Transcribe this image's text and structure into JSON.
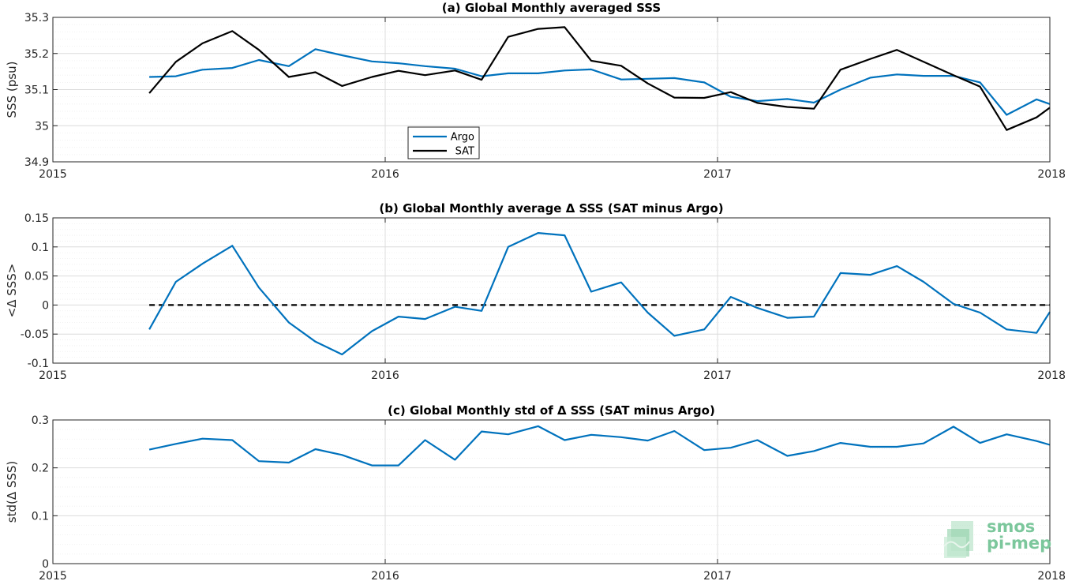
{
  "chart_data": [
    {
      "type": "line",
      "title": "(a) Global Monthly averaged SSS",
      "ylabel": "SSS (psu)",
      "xlabel": "",
      "xlim": [
        2015,
        2018
      ],
      "ylim": [
        34.9,
        35.3
      ],
      "x_ticks": [
        "2015",
        "2016",
        "2017",
        "2018"
      ],
      "y_ticks": [
        "34.9",
        "35",
        "35.1",
        "35.2",
        "35.3"
      ],
      "grid": true,
      "legend": "lower-left",
      "x": [
        2015.29,
        2015.37,
        2015.45,
        2015.54,
        2015.62,
        2015.71,
        2015.79,
        2015.87,
        2015.96,
        2016.04,
        2016.12,
        2016.21,
        2016.29,
        2016.37,
        2016.46,
        2016.54,
        2016.62,
        2016.71,
        2016.79,
        2016.87,
        2016.96,
        2017.04,
        2017.12,
        2017.21,
        2017.29,
        2017.37,
        2017.46,
        2017.54,
        2017.62,
        2017.71,
        2017.79,
        2017.87,
        2017.96,
        2018.0
      ],
      "series": [
        {
          "name": "Argo",
          "color": "#0072bd",
          "values": [
            35.135,
            35.137,
            35.155,
            35.16,
            35.182,
            35.165,
            35.212,
            35.195,
            35.178,
            35.173,
            35.165,
            35.158,
            35.137,
            35.145,
            35.145,
            35.153,
            35.156,
            35.128,
            35.13,
            35.132,
            35.12,
            35.08,
            35.068,
            35.074,
            35.064,
            35.1,
            35.133,
            35.142,
            35.138,
            35.138,
            35.12,
            35.03,
            35.073,
            35.06
          ]
        },
        {
          "name": "SAT",
          "color": "#000000",
          "values": [
            35.09,
            35.177,
            35.228,
            35.262,
            35.21,
            35.135,
            35.148,
            35.11,
            35.135,
            35.152,
            35.14,
            35.153,
            35.127,
            35.246,
            35.268,
            35.273,
            35.18,
            35.166,
            35.117,
            35.078,
            35.077,
            35.093,
            35.063,
            35.052,
            35.047,
            35.155,
            35.185,
            35.21,
            35.177,
            35.14,
            35.108,
            34.988,
            35.023,
            35.05
          ]
        }
      ]
    },
    {
      "type": "line",
      "title": "(b) Global Monthly average Δ SSS (SAT minus Argo)",
      "ylabel": "<Δ SSS>",
      "xlabel": "",
      "xlim": [
        2015,
        2018
      ],
      "ylim": [
        -0.1,
        0.15
      ],
      "x_ticks": [
        "2015",
        "2016",
        "2017",
        "2018"
      ],
      "y_ticks": [
        "-0.1",
        "-0.05",
        "0",
        "0.05",
        "0.1",
        "0.15"
      ],
      "grid": true,
      "reference_line": {
        "y": 0,
        "style": "dashed",
        "color": "#000000"
      },
      "x": [
        2015.29,
        2015.37,
        2015.45,
        2015.54,
        2015.62,
        2015.71,
        2015.79,
        2015.87,
        2015.96,
        2016.04,
        2016.12,
        2016.21,
        2016.29,
        2016.37,
        2016.46,
        2016.54,
        2016.62,
        2016.71,
        2016.79,
        2016.87,
        2016.96,
        2017.04,
        2017.12,
        2017.21,
        2017.29,
        2017.37,
        2017.46,
        2017.54,
        2017.62,
        2017.71,
        2017.79,
        2017.87,
        2017.96,
        2018.0
      ],
      "series": [
        {
          "color": "#0072bd",
          "values": [
            -0.042,
            0.04,
            0.071,
            0.102,
            0.03,
            -0.03,
            -0.063,
            -0.085,
            -0.045,
            -0.02,
            -0.024,
            -0.003,
            -0.01,
            0.1,
            0.124,
            0.12,
            0.023,
            0.039,
            -0.013,
            -0.053,
            -0.042,
            0.014,
            -0.005,
            -0.022,
            -0.02,
            0.055,
            0.052,
            0.067,
            0.04,
            0.002,
            -0.013,
            -0.042,
            -0.048,
            -0.012
          ]
        }
      ]
    },
    {
      "type": "line",
      "title": "(c) Global Monthly std of Δ SSS (SAT minus Argo)",
      "ylabel": "std(Δ SSS)",
      "xlabel": "",
      "xlim": [
        2015,
        2018
      ],
      "ylim": [
        0,
        0.3
      ],
      "x_ticks": [
        "2015",
        "2016",
        "2017",
        "2018"
      ],
      "y_ticks": [
        "0",
        "0.1",
        "0.2",
        "0.3"
      ],
      "grid": true,
      "x": [
        2015.29,
        2015.37,
        2015.45,
        2015.54,
        2015.62,
        2015.71,
        2015.79,
        2015.87,
        2015.96,
        2016.04,
        2016.12,
        2016.21,
        2016.29,
        2016.37,
        2016.46,
        2016.54,
        2016.62,
        2016.71,
        2016.79,
        2016.87,
        2016.96,
        2017.04,
        2017.12,
        2017.21,
        2017.29,
        2017.37,
        2017.46,
        2017.54,
        2017.62,
        2017.71,
        2017.79,
        2017.87,
        2017.96,
        2018.0
      ],
      "series": [
        {
          "color": "#0072bd",
          "values": [
            0.238,
            0.25,
            0.261,
            0.258,
            0.214,
            0.211,
            0.239,
            0.227,
            0.205,
            0.205,
            0.258,
            0.217,
            0.276,
            0.27,
            0.287,
            0.258,
            0.269,
            0.264,
            0.257,
            0.277,
            0.237,
            0.242,
            0.258,
            0.225,
            0.235,
            0.252,
            0.244,
            0.244,
            0.251,
            0.286,
            0.252,
            0.27,
            0.256,
            0.248
          ]
        }
      ]
    }
  ],
  "logo": {
    "line1": "smos",
    "line2": "pi-mep",
    "color": "#7cc79c"
  }
}
